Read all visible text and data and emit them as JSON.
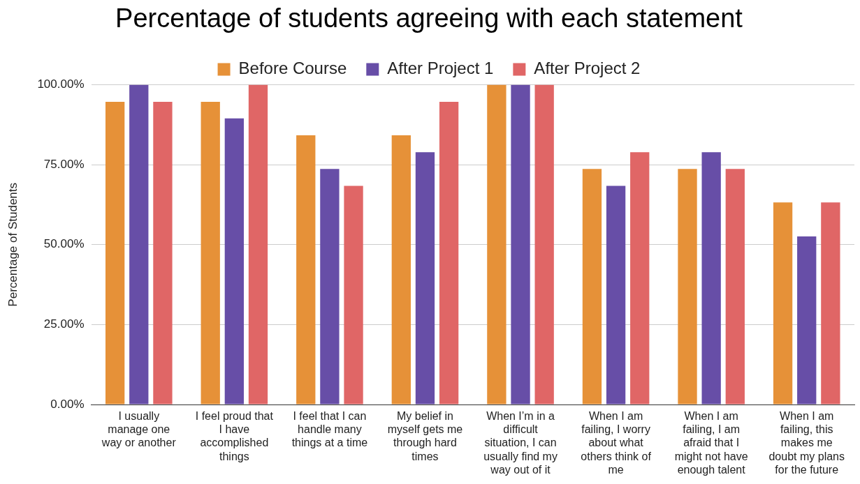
{
  "chart_data": {
    "type": "bar",
    "title": "Percentage of students agreeing with each statement",
    "ylabel": "Percentage of Students",
    "categories": [
      "I usually manage one way or another",
      "I feel proud that I have accomplished things",
      "I feel that I can handle many things at a time",
      "My belief in myself gets me through hard times",
      "When I’m in a difficult situation, I can usually find my way out of it",
      "When I am failing, I worry about what others think of me",
      "When I am failing, I am afraid that I might not have enough talent",
      "When I am failing, this makes me doubt my plans for the future"
    ],
    "series": [
      {
        "name": "Before Course",
        "color": "#e69138",
        "values": [
          94.7,
          94.7,
          84.2,
          84.2,
          100,
          73.7,
          73.7,
          63.2
        ]
      },
      {
        "name": "After Project 1",
        "color": "#674ea7",
        "values": [
          100,
          89.5,
          73.7,
          78.9,
          100,
          68.4,
          78.9,
          52.6
        ]
      },
      {
        "name": "After Project 2",
        "color": "#e06666",
        "values": [
          94.7,
          100,
          68.4,
          94.7,
          100,
          78.9,
          73.7,
          63.2
        ]
      }
    ],
    "ylim": [
      0,
      100
    ],
    "yticks": [
      {
        "value": 0,
        "label": "0.00%"
      },
      {
        "value": 25,
        "label": "25.00%"
      },
      {
        "value": 50,
        "label": "50.00%"
      },
      {
        "value": 75,
        "label": "75.00%"
      },
      {
        "value": 100,
        "label": "100.00%"
      }
    ],
    "grid": "y",
    "legend": "top"
  }
}
